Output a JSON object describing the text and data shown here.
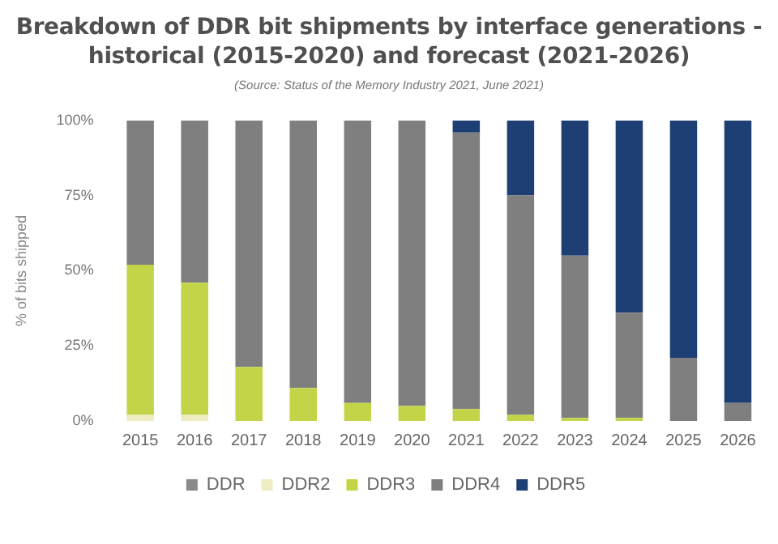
{
  "chart_data": {
    "type": "bar",
    "stacked": true,
    "title": "Breakdown of DDR bit shipments by interface generations - historical (2015-2020) and forecast (2021-2026)",
    "subtitle": "(Source: Status of the Memory Industry 2021, June 2021)",
    "ylabel": "% of bits shipped",
    "categories": [
      "2015",
      "2016",
      "2017",
      "2018",
      "2019",
      "2020",
      "2021",
      "2022",
      "2023",
      "2024",
      "2025",
      "2026"
    ],
    "series": [
      {
        "name": "DDR",
        "color": "#8a8a8a",
        "values": [
          0,
          0,
          0,
          0,
          0,
          0,
          0,
          0,
          0,
          0,
          0,
          0
        ]
      },
      {
        "name": "DDR2",
        "color": "#eeecc2",
        "values": [
          2,
          2,
          0,
          0,
          0,
          0,
          0,
          0,
          0,
          0,
          0,
          0
        ]
      },
      {
        "name": "DDR3",
        "color": "#c4d448",
        "values": [
          50,
          44,
          18,
          11,
          6,
          5,
          4,
          2,
          1,
          1,
          0,
          0
        ]
      },
      {
        "name": "DDR4",
        "color": "#7f7f7f",
        "values": [
          48,
          54,
          82,
          89,
          94,
          95,
          92,
          73,
          54,
          35,
          21,
          6
        ]
      },
      {
        "name": "DDR5",
        "color": "#1e3f74",
        "values": [
          0,
          0,
          0,
          0,
          0,
          0,
          4,
          25,
          45,
          64,
          79,
          94
        ]
      }
    ],
    "ylim": [
      0,
      100
    ],
    "yticks": [
      {
        "value": 0,
        "label": "0%"
      },
      {
        "value": 25,
        "label": "25%"
      },
      {
        "value": 50,
        "label": "50%"
      },
      {
        "value": 75,
        "label": "75%"
      },
      {
        "value": 100,
        "label": "100%"
      }
    ],
    "grid": false,
    "legend": "bottom"
  }
}
